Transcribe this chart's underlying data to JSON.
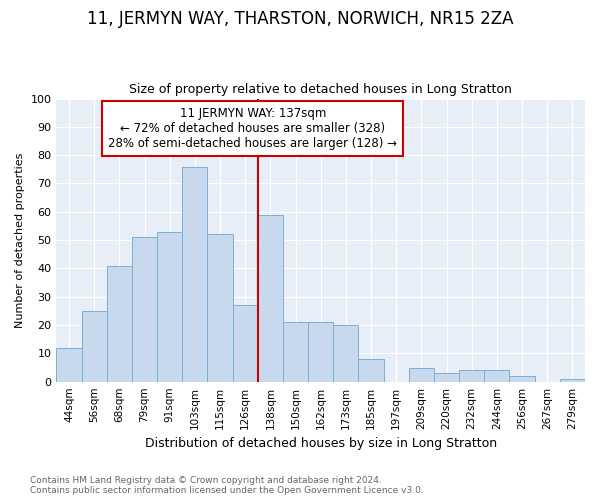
{
  "title": "11, JERMYN WAY, THARSTON, NORWICH, NR15 2ZA",
  "subtitle": "Size of property relative to detached houses in Long Stratton",
  "xlabel": "Distribution of detached houses by size in Long Stratton",
  "ylabel": "Number of detached properties",
  "footnote1": "Contains HM Land Registry data © Crown copyright and database right 2024.",
  "footnote2": "Contains public sector information licensed under the Open Government Licence v3.0.",
  "categories": [
    "44sqm",
    "56sqm",
    "68sqm",
    "79sqm",
    "91sqm",
    "103sqm",
    "115sqm",
    "126sqm",
    "138sqm",
    "150sqm",
    "162sqm",
    "173sqm",
    "185sqm",
    "197sqm",
    "209sqm",
    "220sqm",
    "232sqm",
    "244sqm",
    "256sqm",
    "267sqm",
    "279sqm"
  ],
  "values": [
    12,
    25,
    41,
    51,
    53,
    76,
    52,
    27,
    59,
    21,
    21,
    20,
    8,
    0,
    5,
    3,
    4,
    4,
    2,
    0,
    1
  ],
  "bar_color": "#c8d9ee",
  "bar_edge_color": "#7aafd4",
  "vline_index": 8,
  "vline_label": "11 JERMYN WAY: 137sqm",
  "annotation_line1": "← 72% of detached houses are smaller (328)",
  "annotation_line2": "28% of semi-detached houses are larger (128) →",
  "annotation_box_color": "#cc0000",
  "ylim": [
    0,
    100
  ],
  "yticks": [
    0,
    10,
    20,
    30,
    40,
    50,
    60,
    70,
    80,
    90,
    100
  ],
  "plot_bg_color": "#e8eef8",
  "fig_bg_color": "#ffffff",
  "grid_color": "#ffffff",
  "title_fontsize": 12,
  "subtitle_fontsize": 9,
  "annotation_fontsize": 8.5,
  "ylabel_fontsize": 8,
  "xlabel_fontsize": 9,
  "footnote_fontsize": 6.5
}
